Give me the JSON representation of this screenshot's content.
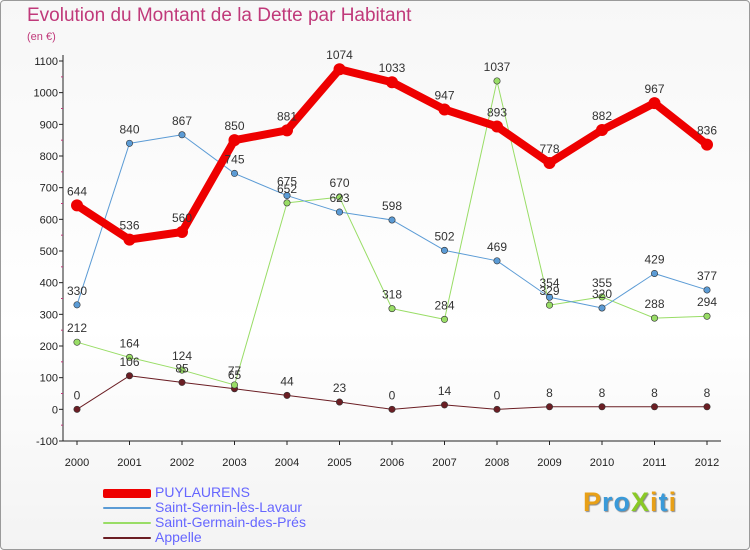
{
  "header": {
    "title": "Evolution du Montant de la Dette par Habitant",
    "subtitle": "(en €)"
  },
  "logo": {
    "text": "ProXiti",
    "letters": [
      {
        "ch": "P",
        "color": "#e8a017"
      },
      {
        "ch": "r",
        "color": "#3a9ad9"
      },
      {
        "ch": "o",
        "color": "#3a9ad9"
      },
      {
        "ch": "X",
        "color": "#8ac926"
      },
      {
        "ch": "i",
        "color": "#e8a017"
      },
      {
        "ch": "t",
        "color": "#3a9ad9"
      },
      {
        "ch": "i",
        "color": "#e8a017"
      }
    ]
  },
  "chart_data": {
    "type": "line",
    "title": "Evolution du Montant de la Dette par Habitant",
    "subtitle": "(en €)",
    "xlabel": "",
    "ylabel": "",
    "ylim": [
      -100,
      1100
    ],
    "yticks": [
      -100,
      0,
      100,
      200,
      300,
      400,
      500,
      600,
      700,
      800,
      900,
      1000,
      1100
    ],
    "grid": false,
    "legend": "bottom-left",
    "x": [
      "2000",
      "2001",
      "2002",
      "2003",
      "2004",
      "2005",
      "2006",
      "2007",
      "2008",
      "2009",
      "2010",
      "2011",
      "2012"
    ],
    "series": [
      {
        "name": "PUYLAURENS",
        "color": "#ee0000",
        "values": [
          644,
          536,
          560,
          850,
          881,
          1074,
          1033,
          947,
          893,
          778,
          882,
          967,
          836
        ]
      },
      {
        "name": "Saint-Sernin-lès-Lavaur",
        "color": "#5b9bd5",
        "values": [
          330,
          840,
          867,
          745,
          675,
          623,
          598,
          502,
          469,
          354,
          320,
          429,
          377
        ]
      },
      {
        "name": "Saint-Germain-des-Prés",
        "color": "#99dd66",
        "values": [
          212,
          164,
          124,
          77,
          652,
          670,
          318,
          284,
          1037,
          329,
          355,
          288,
          294
        ]
      },
      {
        "name": "Appelle",
        "color": "#6b1e24",
        "values": [
          0,
          106,
          85,
          65,
          44,
          23,
          0,
          14,
          0,
          8,
          8,
          8,
          8
        ]
      }
    ]
  }
}
